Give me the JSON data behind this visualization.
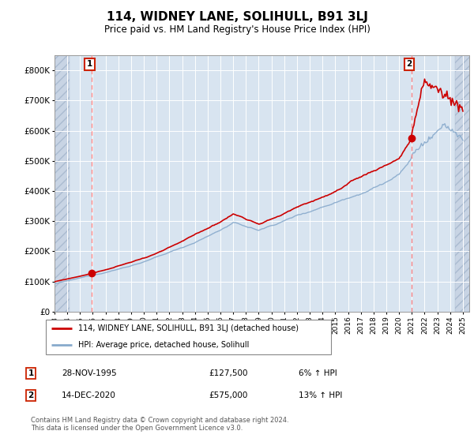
{
  "title": "114, WIDNEY LANE, SOLIHULL, B91 3LJ",
  "subtitle": "Price paid vs. HM Land Registry's House Price Index (HPI)",
  "ylim": [
    0,
    850000
  ],
  "yticks": [
    0,
    100000,
    200000,
    300000,
    400000,
    500000,
    600000,
    700000,
    800000
  ],
  "ytick_labels": [
    "£0",
    "£100K",
    "£200K",
    "£300K",
    "£400K",
    "£500K",
    "£600K",
    "£700K",
    "£800K"
  ],
  "sale1_date": 1995.91,
  "sale1_price": 127500,
  "sale2_date": 2020.96,
  "sale2_price": 575000,
  "legend_line1": "114, WIDNEY LANE, SOLIHULL, B91 3LJ (detached house)",
  "legend_line2": "HPI: Average price, detached house, Solihull",
  "footer": "Contains HM Land Registry data © Crown copyright and database right 2024.\nThis data is licensed under the Open Government Licence v3.0.",
  "bg_color": "#ffffff",
  "line_color_red": "#cc0000",
  "line_color_blue": "#88aacc",
  "dot_color": "#cc0000",
  "sale_line_color": "#ff8888",
  "chart_bg": "#d8e4f0",
  "hatch_bg": "#c8d4e4"
}
